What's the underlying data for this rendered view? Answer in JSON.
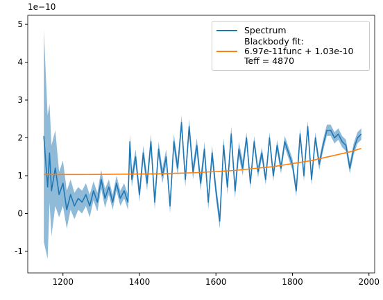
{
  "chart_data": {
    "type": "line",
    "y_offset_label": "1e−10",
    "xlim": [
      1108,
      2015
    ],
    "ylim": [
      -1.57,
      5.24
    ],
    "xticks": [
      1200,
      1400,
      1600,
      1800,
      2000
    ],
    "yticks": [
      -1,
      0,
      1,
      2,
      3,
      4,
      5
    ],
    "series": [
      {
        "name": "Spectrum",
        "color": "#1f77b4",
        "band_color": "#1f77b4",
        "x": [
          1150,
          1160,
          1165,
          1170,
          1180,
          1190,
          1200,
          1210,
          1220,
          1230,
          1240,
          1250,
          1260,
          1270,
          1280,
          1290,
          1300,
          1310,
          1320,
          1330,
          1340,
          1350,
          1360,
          1370,
          1375,
          1380,
          1390,
          1400,
          1410,
          1420,
          1430,
          1440,
          1450,
          1460,
          1470,
          1480,
          1490,
          1500,
          1510,
          1520,
          1530,
          1540,
          1550,
          1560,
          1570,
          1580,
          1590,
          1600,
          1610,
          1620,
          1630,
          1640,
          1650,
          1660,
          1670,
          1680,
          1690,
          1700,
          1710,
          1720,
          1730,
          1740,
          1750,
          1760,
          1770,
          1780,
          1790,
          1800,
          1810,
          1820,
          1830,
          1840,
          1850,
          1860,
          1870,
          1880,
          1890,
          1900,
          1910,
          1920,
          1930,
          1940,
          1950,
          1960,
          1970,
          1980
        ],
        "values": [
          2.05,
          0.7,
          1.6,
          0.6,
          1.2,
          0.5,
          0.8,
          0.1,
          0.5,
          0.2,
          0.4,
          0.3,
          0.5,
          0.2,
          0.6,
          0.3,
          0.9,
          0.4,
          0.7,
          0.3,
          0.8,
          0.4,
          0.6,
          0.3,
          1.9,
          0.9,
          1.5,
          0.5,
          1.6,
          0.8,
          1.9,
          0.3,
          1.7,
          1.0,
          1.5,
          0.2,
          1.9,
          1.2,
          2.4,
          0.9,
          2.3,
          1.1,
          1.8,
          0.8,
          1.7,
          0.3,
          1.6,
          0.6,
          -0.2,
          1.8,
          0.7,
          2.1,
          0.6,
          1.7,
          1.2,
          2.0,
          0.8,
          1.9,
          1.1,
          1.6,
          0.9,
          2.0,
          1.0,
          1.8,
          1.2,
          1.9,
          1.6,
          1.3,
          0.6,
          2.1,
          1.0,
          2.3,
          0.9,
          2.0,
          1.3,
          1.8,
          2.2,
          2.2,
          2.0,
          2.1,
          1.9,
          1.8,
          1.2,
          1.7,
          2.0,
          2.1
        ],
        "errors": [
          2.8,
          1.9,
          1.3,
          1.2,
          1.0,
          0.6,
          0.6,
          0.5,
          0.4,
          0.35,
          0.3,
          0.3,
          0.3,
          0.3,
          0.25,
          0.25,
          0.25,
          0.25,
          0.2,
          0.2,
          0.2,
          0.2,
          0.2,
          0.2,
          0.2,
          0.2,
          0.2,
          0.2,
          0.2,
          0.2,
          0.2,
          0.2,
          0.2,
          0.2,
          0.2,
          0.2,
          0.2,
          0.2,
          0.2,
          0.2,
          0.2,
          0.2,
          0.2,
          0.2,
          0.2,
          0.2,
          0.2,
          0.2,
          0.2,
          0.2,
          0.2,
          0.2,
          0.2,
          0.2,
          0.2,
          0.15,
          0.15,
          0.15,
          0.15,
          0.15,
          0.15,
          0.15,
          0.15,
          0.15,
          0.15,
          0.15,
          0.15,
          0.15,
          0.15,
          0.15,
          0.15,
          0.15,
          0.15,
          0.15,
          0.15,
          0.15,
          0.15,
          0.15,
          0.15,
          0.15,
          0.15,
          0.15,
          0.15,
          0.15,
          0.15,
          0.15
        ]
      },
      {
        "name": "Blackbody fit:\n6.97e-11func + 1.03e-10\nTeff = 4870",
        "color": "#ff7f0e",
        "x": [
          1150,
          1250,
          1350,
          1450,
          1550,
          1650,
          1750,
          1850,
          1950,
          1980
        ],
        "values": [
          1.03,
          1.03,
          1.04,
          1.05,
          1.08,
          1.14,
          1.24,
          1.4,
          1.63,
          1.72
        ]
      }
    ]
  }
}
